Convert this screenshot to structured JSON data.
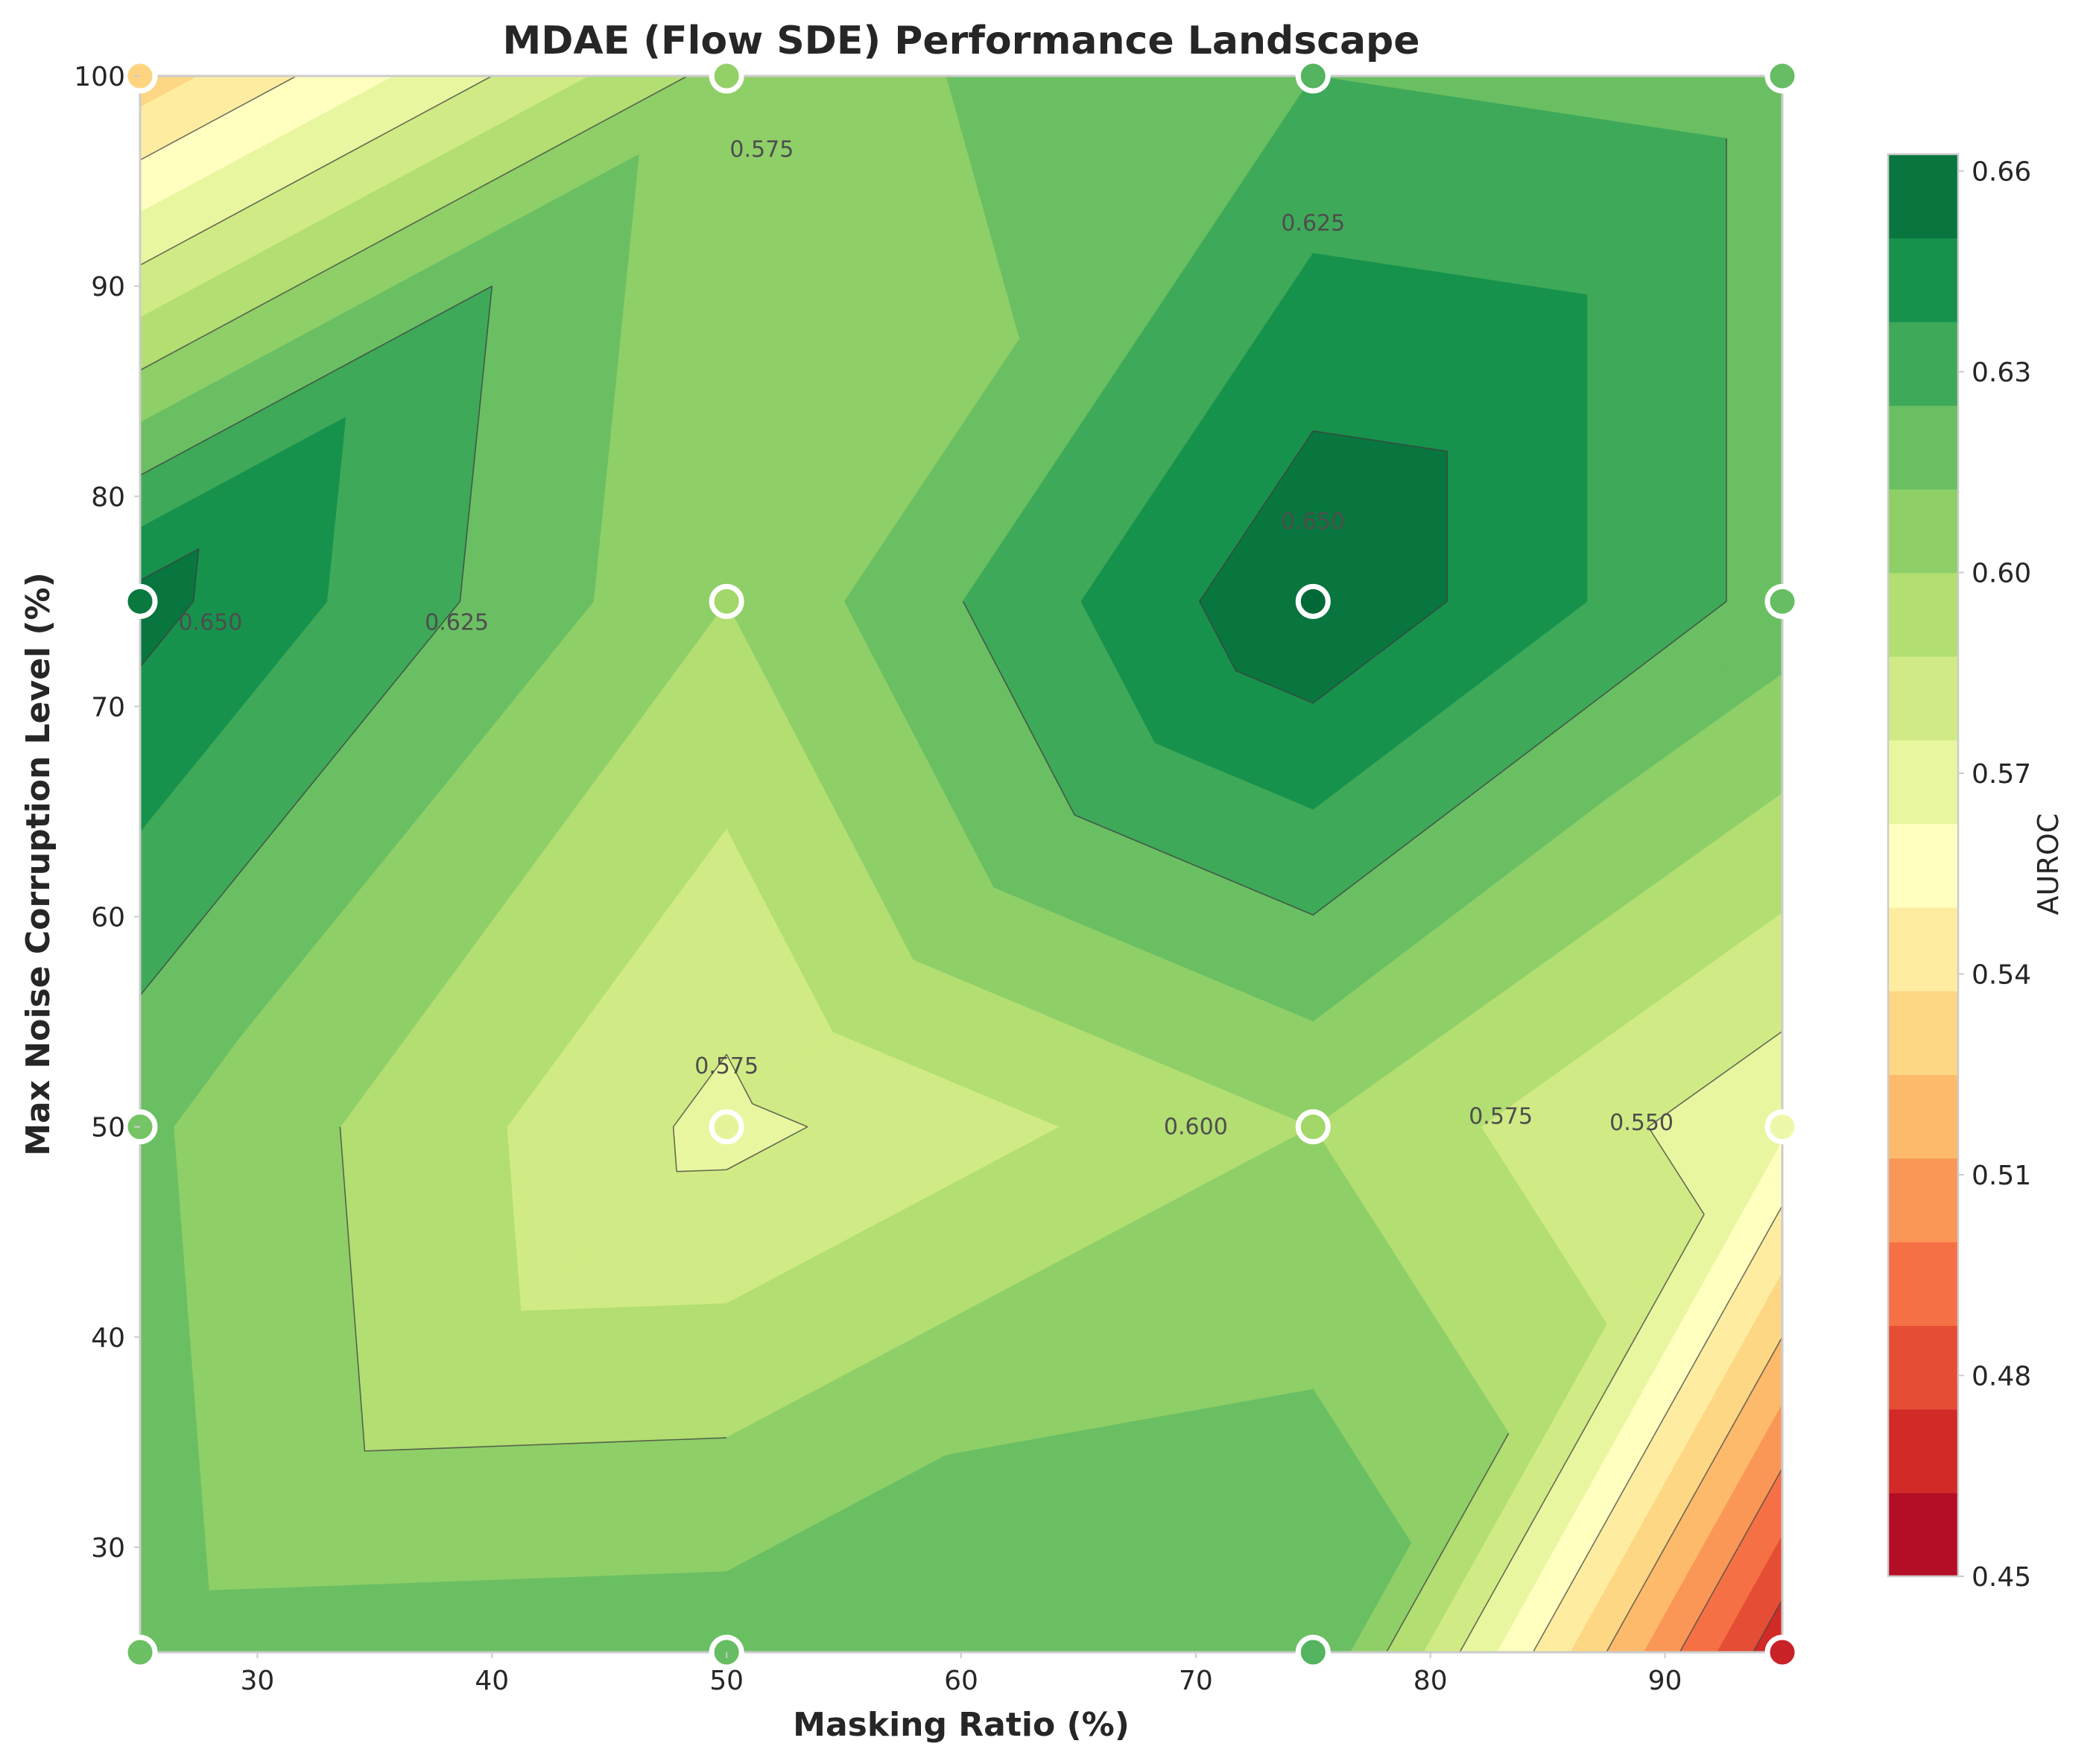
{
  "chart_data": {
    "type": "contour",
    "title": "MDAE (Flow SDE) Performance Landscape",
    "xlabel": "Masking Ratio (%)",
    "ylabel": "Max Noise Corruption Level (%)",
    "colorbar_label": "AUROC",
    "x": [
      25,
      50,
      75,
      95
    ],
    "y": [
      25,
      50,
      75,
      100
    ],
    "z": [
      [
        0.618,
        0.62,
        0.625,
        0.465
      ],
      [
        0.615,
        0.571,
        0.6,
        0.565
      ],
      [
        0.655,
        0.6,
        0.662,
        0.62
      ],
      [
        0.53,
        0.605,
        0.625,
        0.62
      ]
    ],
    "xlim": [
      25,
      95
    ],
    "ylim": [
      25,
      100
    ],
    "xticks": [
      30,
      40,
      50,
      60,
      70,
      80,
      90
    ],
    "yticks": [
      30,
      40,
      50,
      60,
      70,
      80,
      90,
      100
    ],
    "fill_levels": [
      0.45,
      0.4625,
      0.475,
      0.4875,
      0.5,
      0.5125,
      0.525,
      0.5375,
      0.55,
      0.5625,
      0.575,
      0.5875,
      0.6,
      0.6125,
      0.625,
      0.6375,
      0.65,
      0.6625
    ],
    "line_levels": [
      0.475,
      0.5,
      0.525,
      0.55,
      0.575,
      0.6,
      0.625,
      0.65
    ],
    "colorbar_ticks": [
      "0.45",
      "0.48",
      "0.51",
      "0.54",
      "0.57",
      "0.60",
      "0.63",
      "0.66"
    ],
    "contour_labels": [
      {
        "text": "0.575",
        "x": 50,
        "y": 52.9
      },
      {
        "text": "0.600",
        "x": 70,
        "y": 50
      },
      {
        "text": "0.625",
        "x": 75,
        "y": 93
      },
      {
        "text": "0.650",
        "x": 75,
        "y": 78.8
      },
      {
        "text": "0.575",
        "x": 51.5,
        "y": 96.5
      },
      {
        "text": "0.650",
        "x": 28,
        "y": 74
      },
      {
        "text": "0.625",
        "x": 38.5,
        "y": 74
      },
      {
        "text": "0.550",
        "x": 89,
        "y": 50.2
      },
      {
        "text": "0.575",
        "x": 83,
        "y": 50.5
      }
    ],
    "colormap": "RdYlGn",
    "grid": false
  }
}
